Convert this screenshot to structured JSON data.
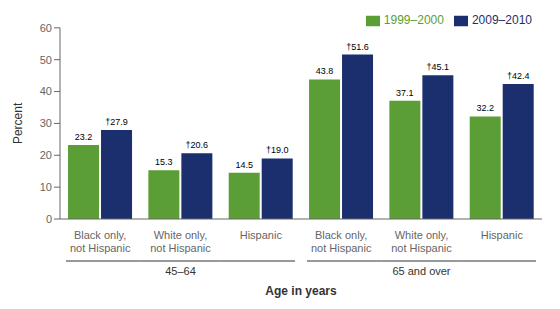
{
  "chart_data": {
    "type": "bar",
    "categories": [
      "Black only,\nnot Hispanic",
      "White only,\nnot Hispanic",
      "Hispanic",
      "Black only,\nnot Hispanic",
      "White only,\nnot Hispanic",
      "Hispanic"
    ],
    "series": [
      {
        "name": "1999–2000",
        "color": "#5a9e35",
        "values": [
          23.2,
          15.3,
          14.5,
          43.8,
          37.1,
          32.2
        ]
      },
      {
        "name": "2009–2010",
        "color": "#1b2f6e",
        "values": [
          27.9,
          20.6,
          19.0,
          51.6,
          45.1,
          42.4
        ],
        "value_labels": [
          "†27.9",
          "†20.6",
          "†19.0",
          "†51.6",
          "†45.1",
          "†42.4"
        ]
      }
    ],
    "annotations": [
      "45–64",
      "65 and over"
    ],
    "ylim": [
      0,
      60
    ],
    "yticks": [
      0,
      10,
      20,
      30,
      40,
      50,
      60
    ],
    "ylabel": "Percent",
    "xlabel": "Age in years",
    "legend": "upper right",
    "grid": false,
    "data_labels": true
  }
}
